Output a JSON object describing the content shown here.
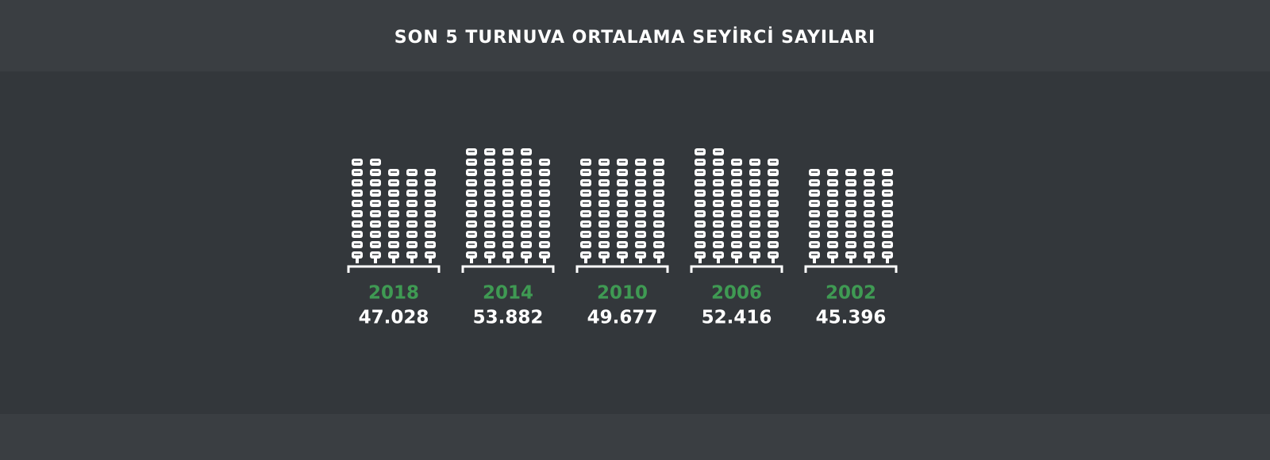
{
  "chart_data": {
    "type": "pictogram",
    "title": "SON 5 TURNUVA ORTALAMA SEYİRCİ SAYILARI",
    "categories": [
      "2018",
      "2014",
      "2010",
      "2006",
      "2002"
    ],
    "values": [
      47028,
      53882,
      49677,
      52416,
      45396
    ],
    "value_labels": [
      "47.028",
      "53.882",
      "49.677",
      "52.416",
      "45.396"
    ],
    "color": "#ffffff",
    "category_color": "#3f9a53"
  }
}
